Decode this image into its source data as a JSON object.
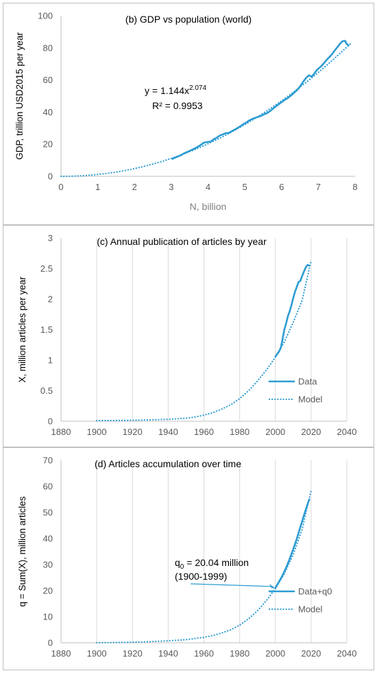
{
  "chart_data": [
    {
      "type": "line",
      "title": "(b) GDP vs population (world)",
      "xlabel": "N, billion",
      "ylabel": "GDP, trillion USD2015 per year",
      "xlim": [
        0,
        8
      ],
      "ylim": [
        0,
        100
      ],
      "x_ticks": [
        "0",
        "1",
        "2",
        "3",
        "4",
        "5",
        "6",
        "7",
        "8"
      ],
      "y_ticks": [
        "0",
        "20",
        "40",
        "60",
        "80",
        "100"
      ],
      "equation": {
        "base": "y = 1.144x",
        "exp": "2.074"
      },
      "r2": "R² = 0.9953",
      "grid": false,
      "legend": "none",
      "color": "#2b9bd3",
      "series": [
        {
          "style": "solid",
          "x": [
            3.03,
            3.14,
            3.25,
            3.35,
            3.46,
            3.57,
            3.68,
            3.78,
            3.89,
            3.99,
            4.07,
            4.15,
            4.24,
            4.32,
            4.4,
            4.48,
            4.56,
            4.64,
            4.72,
            4.8,
            4.88,
            4.96,
            5.04,
            5.12,
            5.2,
            5.28,
            5.36,
            5.44,
            5.52,
            5.6,
            5.68,
            5.76,
            5.84,
            5.92,
            6.0,
            6.08,
            6.16,
            6.24,
            6.32,
            6.4,
            6.47,
            6.54,
            6.61,
            6.68,
            6.75,
            6.82,
            6.89,
            6.96,
            7.03,
            7.1,
            7.17,
            7.24,
            7.31,
            7.38,
            7.45,
            7.52,
            7.59,
            7.66,
            7.73,
            7.77,
            7.82
          ],
          "y": [
            10.9,
            12.0,
            13.0,
            14.3,
            15.4,
            16.6,
            17.8,
            19.2,
            21.0,
            21.4,
            21.6,
            23.0,
            24.1,
            25.4,
            26.1,
            26.9,
            27.0,
            28.0,
            29.0,
            30.1,
            31.2,
            32.5,
            33.5,
            34.8,
            35.7,
            36.4,
            37.0,
            37.6,
            38.6,
            39.3,
            40.5,
            42.0,
            43.5,
            44.8,
            46.2,
            47.5,
            48.6,
            50.0,
            51.6,
            53.3,
            55.0,
            57.2,
            59.6,
            61.6,
            62.9,
            62.0,
            64.0,
            66.2,
            67.6,
            69.0,
            71.0,
            72.8,
            74.5,
            76.3,
            78.5,
            80.5,
            82.6,
            84.2,
            84.4,
            82.5,
            81.6
          ]
        },
        {
          "style": "dotted",
          "equation_model": true
        }
      ]
    },
    {
      "type": "line",
      "title": "(c) Annual publication of articles by year",
      "xlabel": "",
      "ylabel": "X, million articles per year",
      "xlim": [
        1880,
        2040
      ],
      "ylim": [
        0,
        3
      ],
      "x_ticks": [
        "1880",
        "1900",
        "1920",
        "1940",
        "1960",
        "1980",
        "2000",
        "2020",
        "2040"
      ],
      "y_ticks": [
        "0",
        "0.5",
        "1",
        "1.5",
        "2",
        "2.5",
        "3"
      ],
      "grid": true,
      "legend": "bottom-right",
      "color": "#2b9bd3",
      "series": [
        {
          "name": "Data",
          "style": "solid",
          "x": [
            2000,
            2001,
            2002,
            2003,
            2004,
            2005,
            2006,
            2007,
            2008,
            2009,
            2010,
            2011,
            2012,
            2013,
            2014,
            2015,
            2016,
            2017,
            2018,
            2019
          ],
          "y": [
            1.06,
            1.1,
            1.14,
            1.2,
            1.34,
            1.5,
            1.6,
            1.72,
            1.8,
            1.9,
            2.02,
            2.12,
            2.2,
            2.28,
            2.3,
            2.38,
            2.45,
            2.52,
            2.56,
            2.55
          ]
        },
        {
          "name": "Model",
          "style": "dotted",
          "x": [
            1900,
            1910,
            1920,
            1930,
            1940,
            1950,
            1955,
            1960,
            1965,
            1970,
            1975,
            1980,
            1985,
            1990,
            1995,
            2000,
            2005,
            2010,
            2015,
            2020
          ],
          "y": [
            0.01,
            0.012,
            0.016,
            0.022,
            0.032,
            0.05,
            0.07,
            0.1,
            0.14,
            0.2,
            0.27,
            0.37,
            0.5,
            0.66,
            0.84,
            1.05,
            1.3,
            1.62,
            1.98,
            2.63
          ]
        }
      ]
    },
    {
      "type": "line",
      "title": "(d) Articles accumulation over time",
      "xlabel": "",
      "ylabel": "q = Sum(X), million articles",
      "xlim": [
        1880,
        2040
      ],
      "ylim": [
        0,
        70
      ],
      "x_ticks": [
        "1880",
        "1900",
        "1920",
        "1940",
        "1960",
        "1980",
        "2000",
        "2020",
        "2040"
      ],
      "y_ticks": [
        "0",
        "10",
        "20",
        "30",
        "40",
        "50",
        "60",
        "70"
      ],
      "annotation": {
        "line1_base": "q",
        "line1_sub": "0",
        "line1_rest": " = 20.04 million",
        "line2": "(1900-1999)"
      },
      "grid": true,
      "legend": "bottom-right",
      "color": "#2b9bd3",
      "series": [
        {
          "name": "Data+q0",
          "style": "solid",
          "x": [
            2000,
            2002,
            2004,
            2006,
            2008,
            2010,
            2012,
            2014,
            2016,
            2018,
            2019
          ],
          "y": [
            21.1,
            23.4,
            25.9,
            28.8,
            32.2,
            35.9,
            39.9,
            44.4,
            48.9,
            53.2,
            55.0
          ]
        },
        {
          "name": "Model",
          "style": "dotted",
          "x": [
            1900,
            1910,
            1920,
            1930,
            1940,
            1950,
            1960,
            1965,
            1970,
            1975,
            1980,
            1985,
            1990,
            1995,
            2000,
            2005,
            2010,
            2015,
            2020
          ],
          "y": [
            0.05,
            0.1,
            0.25,
            0.45,
            0.75,
            1.2,
            2.1,
            2.8,
            3.8,
            5.0,
            6.8,
            9.2,
            12.3,
            16.2,
            20.8,
            26.5,
            33.9,
            43.5,
            58.5
          ]
        }
      ]
    }
  ]
}
